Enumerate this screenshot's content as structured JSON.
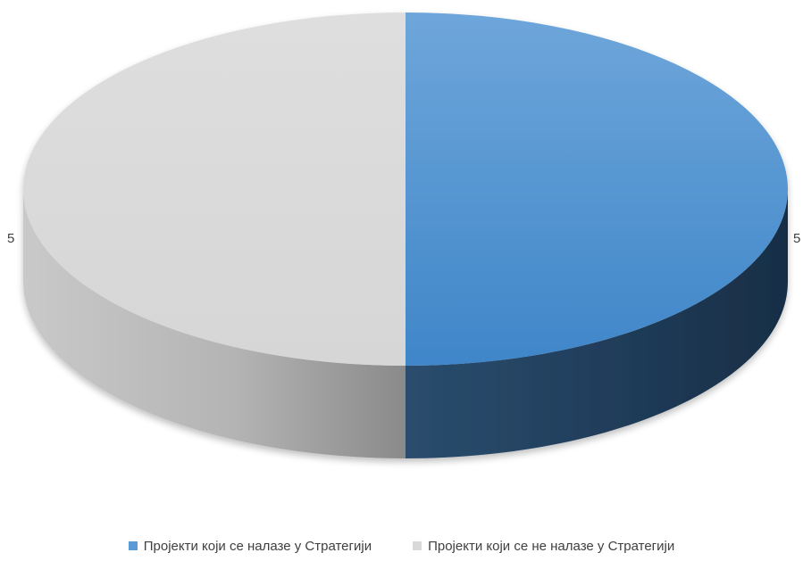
{
  "chart_data": {
    "type": "pie",
    "style": "3d",
    "slices": [
      {
        "label": "Пројекти који се налазе у Стратегији",
        "value": 5,
        "display": "5",
        "color": "#5b9bd5"
      },
      {
        "label": "Пројекти који се не налазе у Стратегији",
        "value": 5,
        "display": "5",
        "color": "#d9d9d9"
      }
    ],
    "legend_position": "bottom",
    "title": ""
  }
}
